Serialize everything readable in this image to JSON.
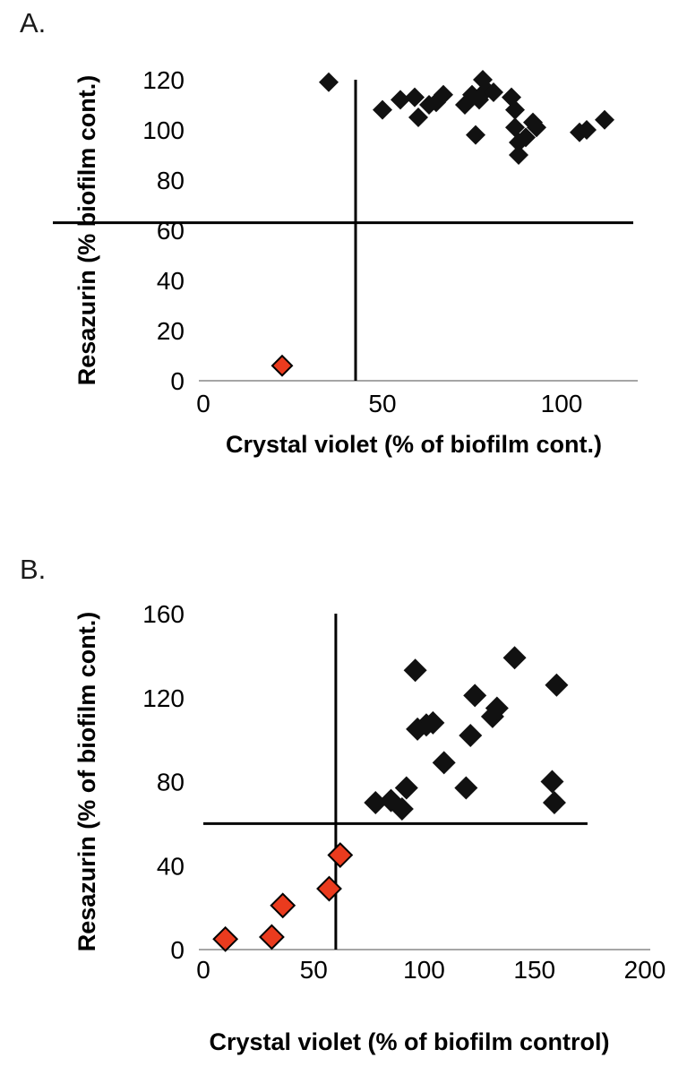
{
  "page_background": "#ffffff",
  "panels": [
    {
      "label": "A."
    },
    {
      "label": "B."
    }
  ],
  "colors": {
    "black_marker": "#111111",
    "red_marker": "#ea3b1e",
    "threshold_line": "#000000",
    "axis_line": "#a6a6a6"
  },
  "chart_data": [
    {
      "type": "scatter",
      "panel": "A",
      "title": "",
      "xlabel": "Crystal violet (% of biofilm cont.)",
      "ylabel": "Resazurin (% biofilm cont.)",
      "xlim": [
        0,
        120
      ],
      "ylim": [
        0,
        120
      ],
      "xticks": [
        0,
        50,
        100
      ],
      "yticks": [
        0,
        20,
        40,
        60,
        80,
        100,
        120
      ],
      "grid": false,
      "legend": "none",
      "axis_color": "#a6a6a6",
      "threshold_lines": {
        "vertical": {
          "x": 42.5,
          "y_from": 0,
          "y_to": 120
        },
        "horizontal": {
          "y": 63,
          "x_from": -42,
          "x_to": 120
        }
      },
      "series": [
        {
          "name": "black-diamonds",
          "marker": "diamond",
          "color": "#111111",
          "outline": "none",
          "points": [
            [
              35,
              119
            ],
            [
              50,
              108
            ],
            [
              55,
              112
            ],
            [
              59,
              113
            ],
            [
              60,
              105
            ],
            [
              63,
              110
            ],
            [
              65,
              111
            ],
            [
              67,
              114
            ],
            [
              73,
              110
            ],
            [
              75,
              114
            ],
            [
              76,
              98
            ],
            [
              77,
              112
            ],
            [
              78,
              120
            ],
            [
              79,
              116
            ],
            [
              81,
              115
            ],
            [
              86,
              113
            ],
            [
              87,
              108
            ],
            [
              87,
              101
            ],
            [
              88,
              95
            ],
            [
              88,
              90
            ],
            [
              90,
              97
            ],
            [
              92,
              103
            ],
            [
              93,
              101
            ],
            [
              105,
              99
            ],
            [
              107,
              100
            ],
            [
              112,
              104
            ]
          ]
        },
        {
          "name": "red-diamonds",
          "marker": "diamond",
          "color": "#ea3b1e",
          "outline": "#000000",
          "points": [
            [
              22,
              6
            ]
          ]
        }
      ]
    },
    {
      "type": "scatter",
      "panel": "B",
      "title": "",
      "xlabel": "Crystal violet (% of biofilm control)",
      "ylabel": "Resazurin (% of biofilm cont.)",
      "xlim": [
        0,
        200
      ],
      "ylim": [
        0,
        160
      ],
      "xticks": [
        0,
        50,
        100,
        150,
        200
      ],
      "yticks": [
        0,
        40,
        80,
        120,
        160
      ],
      "grid": false,
      "legend": "none",
      "axis_color": "#a6a6a6",
      "threshold_lines": {
        "vertical": {
          "x": 60,
          "y_from": 0,
          "y_to": 160
        },
        "horizontal": {
          "y": 60,
          "x_from": 0,
          "x_to": 174
        }
      },
      "series": [
        {
          "name": "black-diamonds",
          "marker": "diamond",
          "color": "#111111",
          "outline": "none",
          "points": [
            [
              78,
              70
            ],
            [
              85,
              71
            ],
            [
              90,
              67
            ],
            [
              92,
              77
            ],
            [
              96,
              133
            ],
            [
              97,
              105
            ],
            [
              101,
              107
            ],
            [
              104,
              108
            ],
            [
              109,
              89
            ],
            [
              119,
              77
            ],
            [
              121,
              102
            ],
            [
              123,
              121
            ],
            [
              131,
              111
            ],
            [
              133,
              115
            ],
            [
              141,
              139
            ],
            [
              160,
              126
            ],
            [
              158,
              80
            ],
            [
              159,
              70
            ]
          ]
        },
        {
          "name": "red-diamonds",
          "marker": "diamond",
          "color": "#ea3b1e",
          "outline": "#000000",
          "points": [
            [
              10,
              5
            ],
            [
              31,
              6
            ],
            [
              36,
              21
            ],
            [
              57,
              29
            ],
            [
              62,
              45
            ]
          ]
        }
      ]
    }
  ]
}
